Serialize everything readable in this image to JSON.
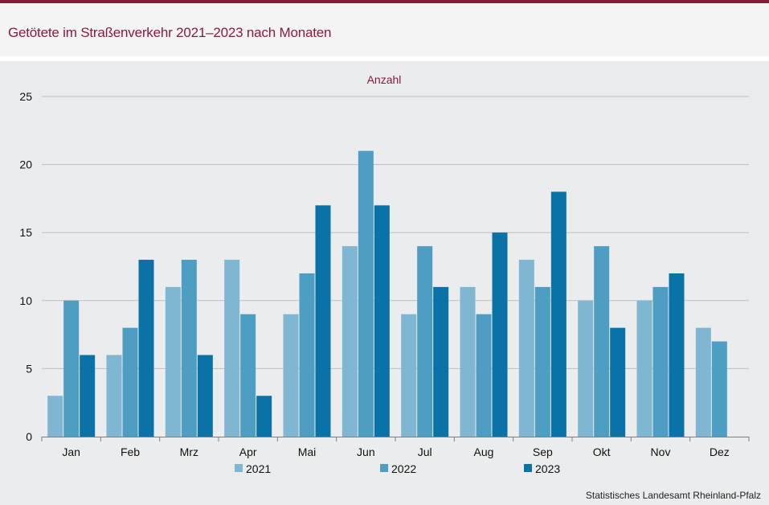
{
  "header": {
    "title": "Getötete im Straßenverkehr 2021–2023 nach Monaten"
  },
  "source": "Statistisches Landesamt  Rheinland-Pfalz",
  "colors": {
    "accent": "#8b1a3a",
    "series": [
      "#7fb6d2",
      "#4d9ec2",
      "#0a72a6"
    ],
    "grid": "#bfbfbf",
    "axis": "#7f7f7f"
  },
  "chart_data": {
    "type": "bar",
    "title": "",
    "ylabel": "Anzahl",
    "xlabel": "",
    "ylim": [
      0,
      25
    ],
    "yticks": [
      0,
      5,
      10,
      15,
      20,
      25
    ],
    "grid": true,
    "legend": "bottom",
    "categories": [
      "Jan",
      "Feb",
      "Mrz",
      "Apr",
      "Mai",
      "Jun",
      "Jul",
      "Aug",
      "Sep",
      "Okt",
      "Nov",
      "Dez"
    ],
    "series": [
      {
        "name": "2021",
        "values": [
          3,
          6,
          11,
          13,
          9,
          14,
          9,
          11,
          13,
          10,
          10,
          8
        ]
      },
      {
        "name": "2022",
        "values": [
          10,
          8,
          13,
          9,
          12,
          21,
          14,
          9,
          11,
          14,
          11,
          7
        ]
      },
      {
        "name": "2023",
        "values": [
          6,
          13,
          6,
          3,
          17,
          17,
          11,
          15,
          18,
          8,
          12,
          null
        ]
      }
    ]
  }
}
